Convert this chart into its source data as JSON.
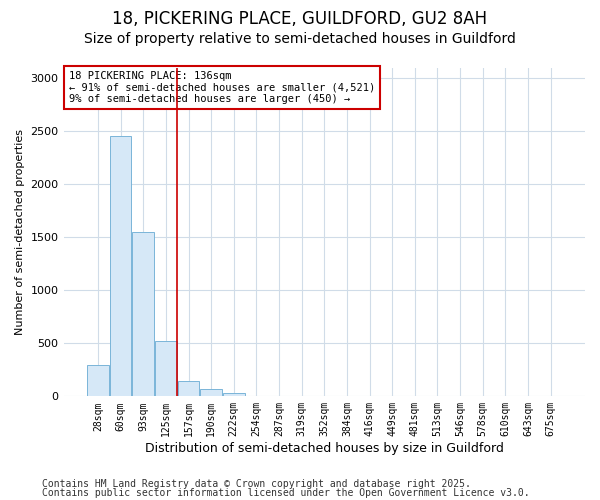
{
  "title1": "18, PICKERING PLACE, GUILDFORD, GU2 8AH",
  "title2": "Size of property relative to semi-detached houses in Guildford",
  "xlabel": "Distribution of semi-detached houses by size in Guildford",
  "ylabel": "Number of semi-detached properties",
  "annotation_title": "18 PICKERING PLACE: 136sqm",
  "annotation_line1": "← 91% of semi-detached houses are smaller (4,521)",
  "annotation_line2": "9% of semi-detached houses are larger (450) →",
  "footnote1": "Contains HM Land Registry data © Crown copyright and database right 2025.",
  "footnote2": "Contains public sector information licensed under the Open Government Licence v3.0.",
  "bar_labels": [
    "28sqm",
    "60sqm",
    "93sqm",
    "125sqm",
    "157sqm",
    "190sqm",
    "222sqm",
    "254sqm",
    "287sqm",
    "319sqm",
    "352sqm",
    "384sqm",
    "416sqm",
    "449sqm",
    "481sqm",
    "513sqm",
    "546sqm",
    "578sqm",
    "610sqm",
    "643sqm",
    "675sqm"
  ],
  "bar_values": [
    300,
    2450,
    1550,
    525,
    140,
    65,
    30,
    5,
    0,
    0,
    0,
    0,
    0,
    0,
    0,
    0,
    0,
    0,
    0,
    0,
    0
  ],
  "bar_color": "#d6e8f7",
  "bar_edge_color": "#7ab5d8",
  "vline_position": 3.5,
  "vline_color": "#cc0000",
  "ylim": [
    0,
    3100
  ],
  "yticks": [
    0,
    500,
    1000,
    1500,
    2000,
    2500,
    3000
  ],
  "bg_color": "#ffffff",
  "grid_color": "#d0dce8",
  "title1_fontsize": 12,
  "title2_fontsize": 10,
  "footnote_fontsize": 7
}
